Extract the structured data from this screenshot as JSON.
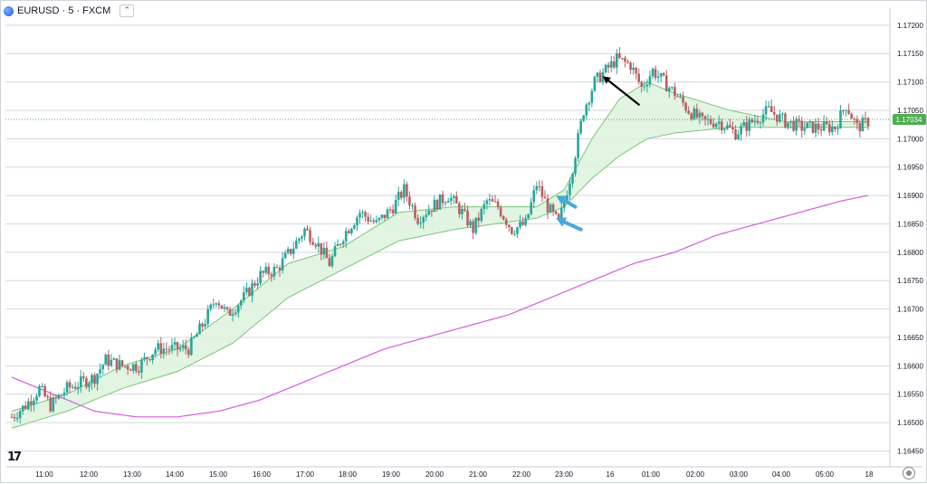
{
  "symbol": {
    "label": "EURUSD · 5 · FXCM",
    "collapse_icon": "chevron-up-icon"
  },
  "watermark": {
    "icon": "tradingview-logo",
    "text": "17"
  },
  "colors": {
    "up": "#26a69a",
    "down": "#b95f5f",
    "band_line": "#7bc67a",
    "band_fill": "#dff3df",
    "slow_ma": "#d65cde",
    "arrow_blue": "#4aa9db",
    "arrow_black": "#000000",
    "price_tag": "#4caf50"
  },
  "chart_data": {
    "type": "candlestick",
    "symbol": "EURUSD",
    "timeframe": "5",
    "source": "FXCM",
    "ylim": [
      1.1643,
      1.1723
    ],
    "y_ticks": [
      "1.17200",
      "1.17150",
      "1.17100",
      "1.17050",
      "1.17000",
      "1.16950",
      "1.16900",
      "1.16850",
      "1.16800",
      "1.16750",
      "1.16700",
      "1.16650",
      "1.16600",
      "1.16550",
      "1.16500",
      "1.16450"
    ],
    "x_ticks": [
      "11:00",
      "12:00",
      "13:00",
      "14:00",
      "15:00",
      "16:00",
      "17:00",
      "18:00",
      "19:00",
      "20:00",
      "21:00",
      "22:00",
      "23:00",
      "16",
      "01:00",
      "02:00",
      "03:00",
      "04:00",
      "05:00",
      "18"
    ],
    "last_price": "1.17034",
    "price_path": [
      [
        0,
        1.1651
      ],
      [
        5,
        1.1653
      ],
      [
        10,
        1.1656
      ],
      [
        14,
        1.1653
      ],
      [
        20,
        1.1656
      ],
      [
        25,
        1.1657
      ],
      [
        30,
        1.1658
      ],
      [
        34,
        1.1661
      ],
      [
        40,
        1.166
      ],
      [
        46,
        1.166
      ],
      [
        52,
        1.1663
      ],
      [
        58,
        1.1663
      ],
      [
        64,
        1.1663
      ],
      [
        70,
        1.1668
      ],
      [
        74,
        1.1672
      ],
      [
        78,
        1.1669
      ],
      [
        84,
        1.1672
      ],
      [
        90,
        1.1676
      ],
      [
        96,
        1.1677
      ],
      [
        102,
        1.1681
      ],
      [
        106,
        1.1684
      ],
      [
        110,
        1.1682
      ],
      [
        115,
        1.1678
      ],
      [
        120,
        1.1683
      ],
      [
        126,
        1.1687
      ],
      [
        132,
        1.1685
      ],
      [
        138,
        1.1688
      ],
      [
        142,
        1.1691
      ],
      [
        147,
        1.1686
      ],
      [
        152,
        1.1688
      ],
      [
        158,
        1.169
      ],
      [
        163,
        1.1687
      ],
      [
        167,
        1.1684
      ],
      [
        172,
        1.1689
      ],
      [
        176,
        1.1688
      ],
      [
        181,
        1.1684
      ],
      [
        186,
        1.1685
      ],
      [
        190,
        1.1692
      ],
      [
        194,
        1.1688
      ],
      [
        198,
        1.1685
      ],
      [
        203,
        1.1695
      ],
      [
        207,
        1.1705
      ],
      [
        211,
        1.171
      ],
      [
        215,
        1.1712
      ],
      [
        219,
        1.1714
      ],
      [
        224,
        1.1713
      ],
      [
        228,
        1.1709
      ],
      [
        232,
        1.1712
      ],
      [
        236,
        1.171
      ],
      [
        240,
        1.1708
      ],
      [
        245,
        1.1705
      ],
      [
        250,
        1.1703
      ],
      [
        256,
        1.1703
      ],
      [
        262,
        1.1701
      ],
      [
        268,
        1.1703
      ],
      [
        274,
        1.1705
      ],
      [
        280,
        1.1703
      ],
      [
        286,
        1.1702
      ],
      [
        292,
        1.1702
      ],
      [
        298,
        1.1702
      ],
      [
        302,
        1.1706
      ],
      [
        306,
        1.1702
      ],
      [
        310,
        1.1703
      ]
    ],
    "band": {
      "fast": [
        [
          0,
          1.1652
        ],
        [
          20,
          1.1655
        ],
        [
          40,
          1.166
        ],
        [
          60,
          1.1663
        ],
        [
          80,
          1.167
        ],
        [
          100,
          1.1678
        ],
        [
          120,
          1.1681
        ],
        [
          140,
          1.1687
        ],
        [
          160,
          1.1688
        ],
        [
          175,
          1.1688
        ],
        [
          190,
          1.1688
        ],
        [
          200,
          1.1691
        ],
        [
          210,
          1.17
        ],
        [
          220,
          1.1707
        ],
        [
          230,
          1.171
        ],
        [
          240,
          1.1708
        ],
        [
          260,
          1.1705
        ],
        [
          280,
          1.1703
        ],
        [
          300,
          1.1703
        ],
        [
          310,
          1.1703
        ]
      ],
      "slow": [
        [
          0,
          1.1649
        ],
        [
          20,
          1.1652
        ],
        [
          40,
          1.1656
        ],
        [
          60,
          1.1659
        ],
        [
          80,
          1.1664
        ],
        [
          100,
          1.1672
        ],
        [
          120,
          1.1677
        ],
        [
          140,
          1.1682
        ],
        [
          160,
          1.1684
        ],
        [
          175,
          1.1685
        ],
        [
          190,
          1.1686
        ],
        [
          200,
          1.1688
        ],
        [
          210,
          1.1693
        ],
        [
          220,
          1.1697
        ],
        [
          230,
          1.17
        ],
        [
          240,
          1.1701
        ],
        [
          260,
          1.1702
        ],
        [
          280,
          1.1702
        ],
        [
          300,
          1.1702
        ],
        [
          310,
          1.1702
        ]
      ]
    },
    "slow_ma": [
      [
        0,
        1.1658
      ],
      [
        15,
        1.1655
      ],
      [
        30,
        1.1652
      ],
      [
        45,
        1.1651
      ],
      [
        60,
        1.1651
      ],
      [
        75,
        1.1652
      ],
      [
        90,
        1.1654
      ],
      [
        105,
        1.1657
      ],
      [
        120,
        1.166
      ],
      [
        135,
        1.1663
      ],
      [
        150,
        1.1665
      ],
      [
        165,
        1.1667
      ],
      [
        180,
        1.1669
      ],
      [
        195,
        1.1672
      ],
      [
        210,
        1.1675
      ],
      [
        225,
        1.1678
      ],
      [
        240,
        1.168
      ],
      [
        255,
        1.1683
      ],
      [
        270,
        1.1685
      ],
      [
        285,
        1.1687
      ],
      [
        300,
        1.1689
      ],
      [
        310,
        1.169
      ]
    ],
    "annotations": [
      {
        "type": "arrow",
        "color": "blue",
        "tip": [
          197,
          1.169
        ],
        "tail": [
          204,
          1.1688
        ]
      },
      {
        "type": "arrow",
        "color": "blue",
        "tip": [
          197,
          1.1686
        ],
        "tail": [
          206,
          1.1684
        ]
      },
      {
        "type": "arrow",
        "color": "black",
        "tip": [
          214,
          1.1711
        ],
        "tail": [
          227,
          1.1706
        ]
      }
    ]
  }
}
